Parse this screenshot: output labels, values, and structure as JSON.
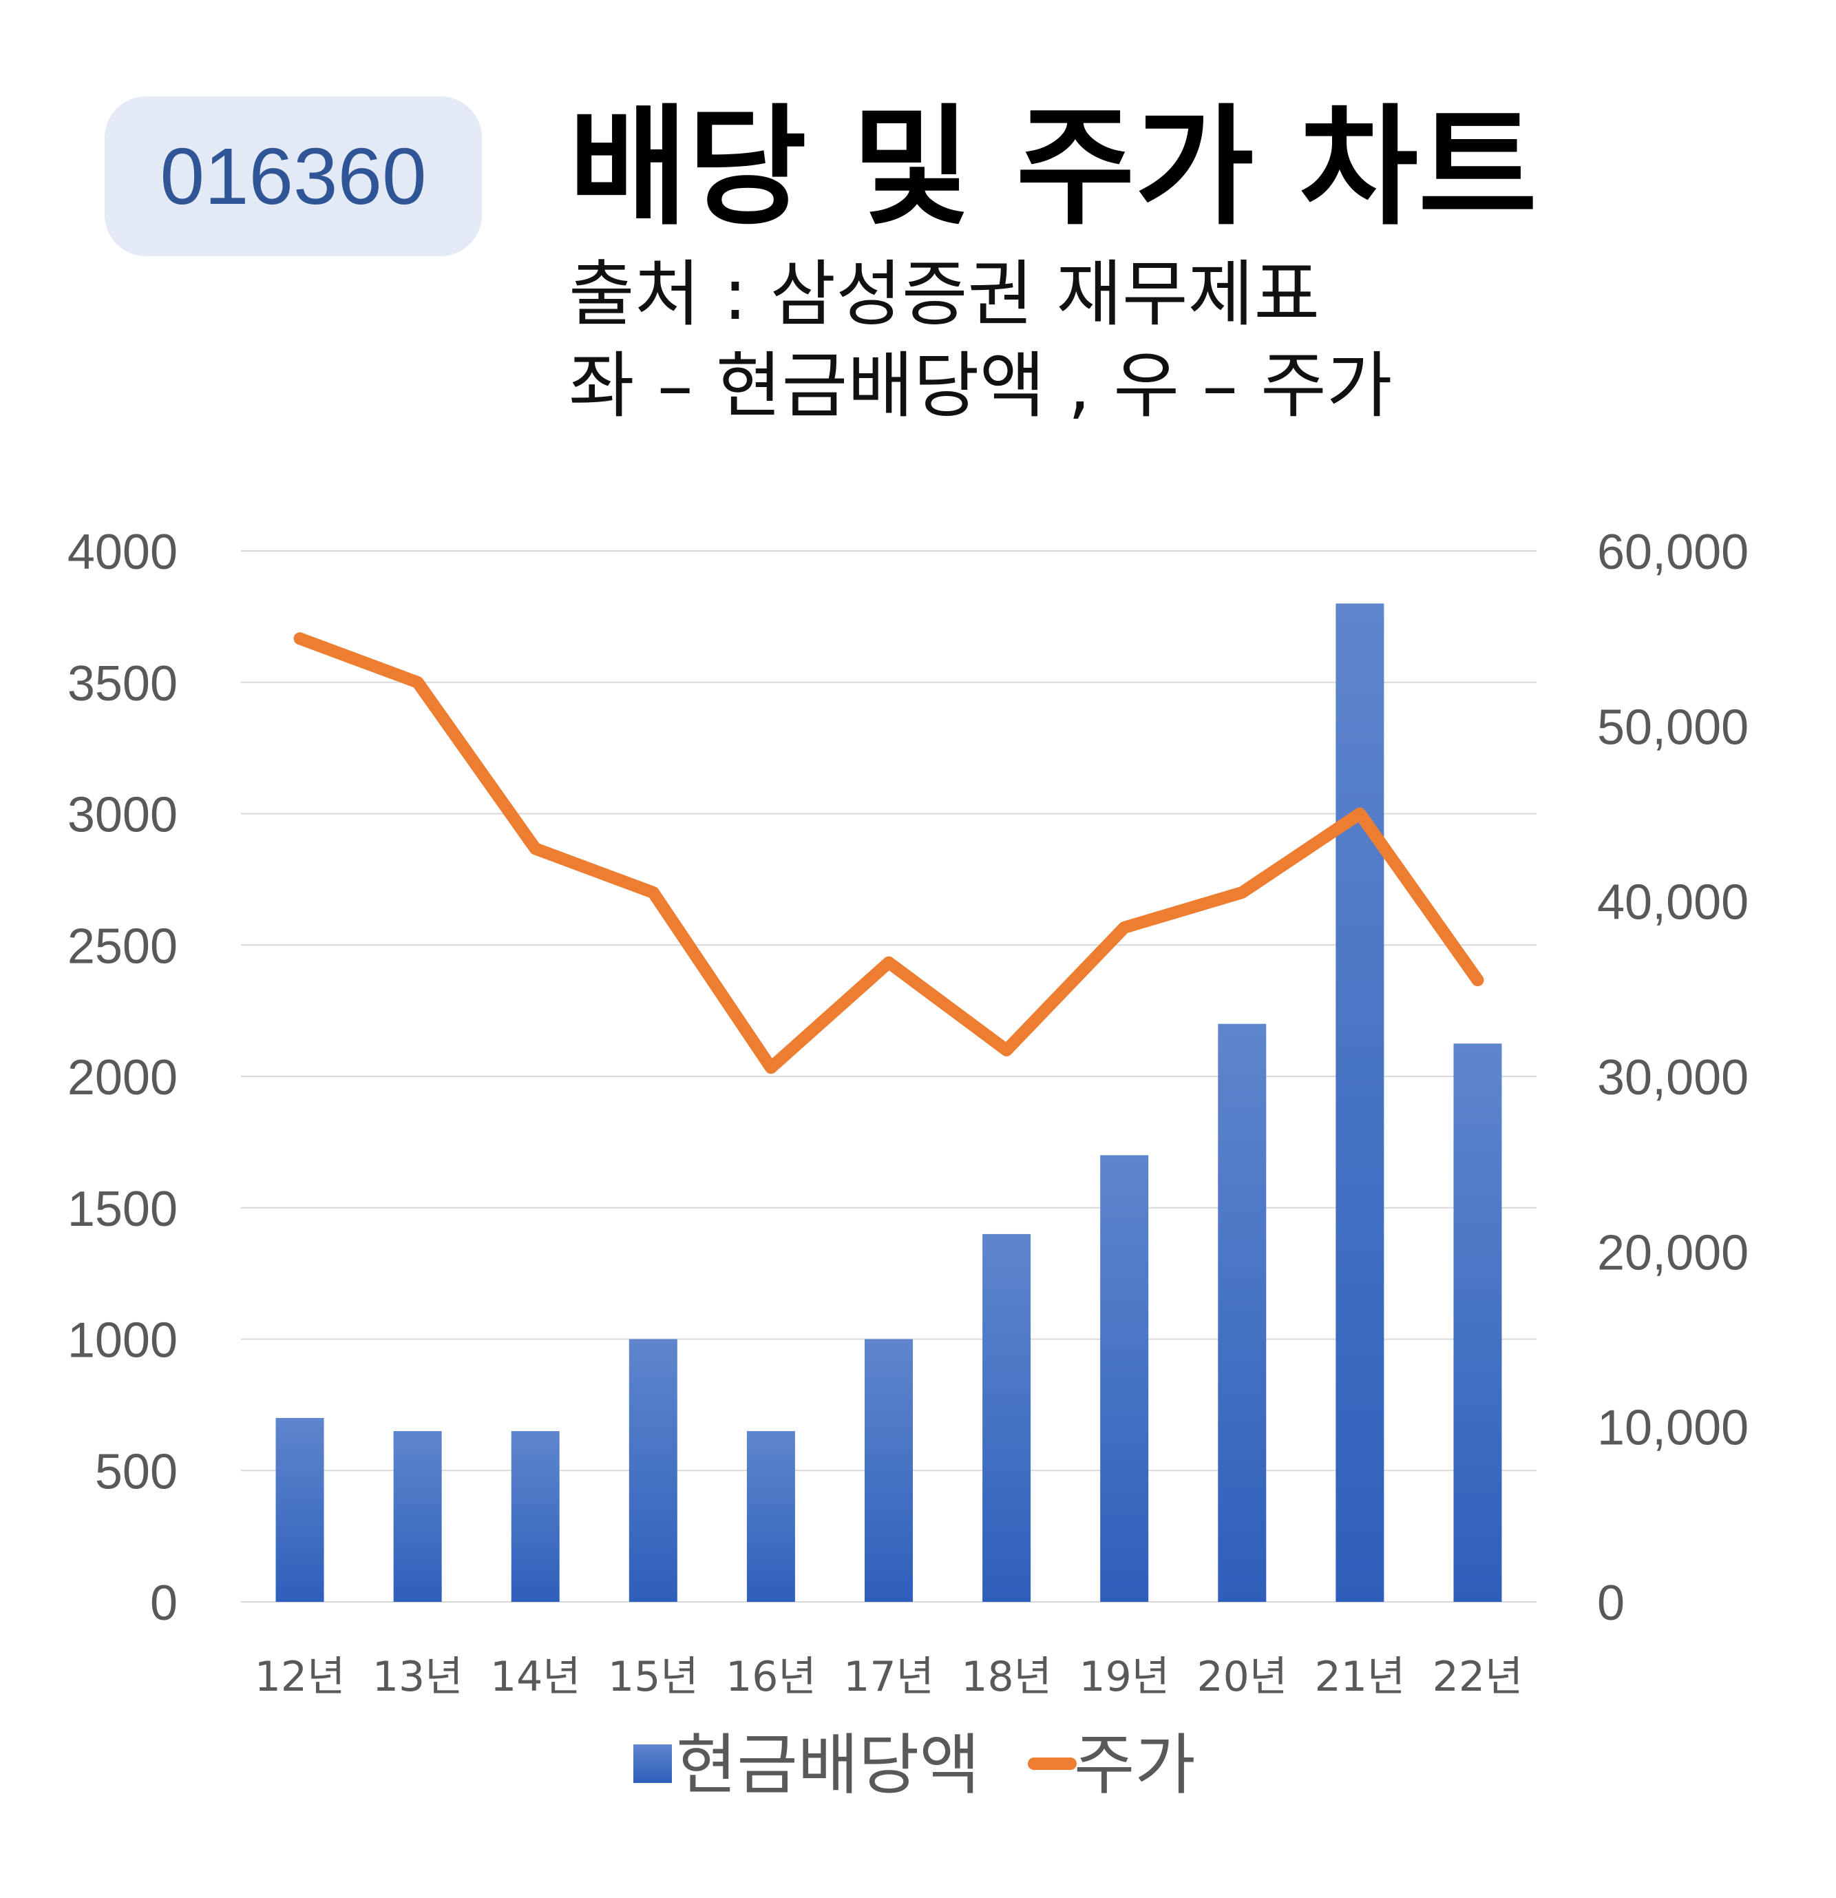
{
  "badge": "016360",
  "header": {
    "title": "배당 및 주가 차트",
    "source": "출처 : 삼성증권 재무제표",
    "axes_note": "좌 – 현금배당액 , 우 – 주가"
  },
  "colors": {
    "bar": "#4472c4",
    "bar_light": "#5b84cc",
    "line": "#ed7d31",
    "grid": "#d9d9d9",
    "badge_bg": "#e3e9f5",
    "badge_text": "#2f5597"
  },
  "chart_data": {
    "type": "bar",
    "categories": [
      "12년",
      "13년",
      "14년",
      "15년",
      "16년",
      "17년",
      "18년",
      "19년",
      "20년",
      "21년",
      "22년"
    ],
    "series": [
      {
        "name": "현금배당액",
        "type": "bar",
        "axis": "left",
        "values": [
          700,
          650,
          650,
          1000,
          650,
          1000,
          1400,
          1700,
          2200,
          3800,
          2125
        ]
      },
      {
        "name": "주가",
        "type": "line",
        "axis": "right",
        "values": [
          55000,
          52500,
          43000,
          40500,
          30500,
          36500,
          31500,
          38500,
          40500,
          45000,
          35500
        ]
      }
    ],
    "ylim_left": [
      0,
      4000
    ],
    "yticks_left": [
      "0",
      "500",
      "1000",
      "1500",
      "2000",
      "2500",
      "3000",
      "3500",
      "4000"
    ],
    "ylim_right": [
      0,
      60000
    ],
    "yticks_right": [
      "0",
      "10,000",
      "20,000",
      "30,000",
      "40,000",
      "50,000",
      "60,000"
    ],
    "legend": [
      "현금배당액",
      "주가"
    ],
    "legend_position": "bottom",
    "grid": true
  }
}
